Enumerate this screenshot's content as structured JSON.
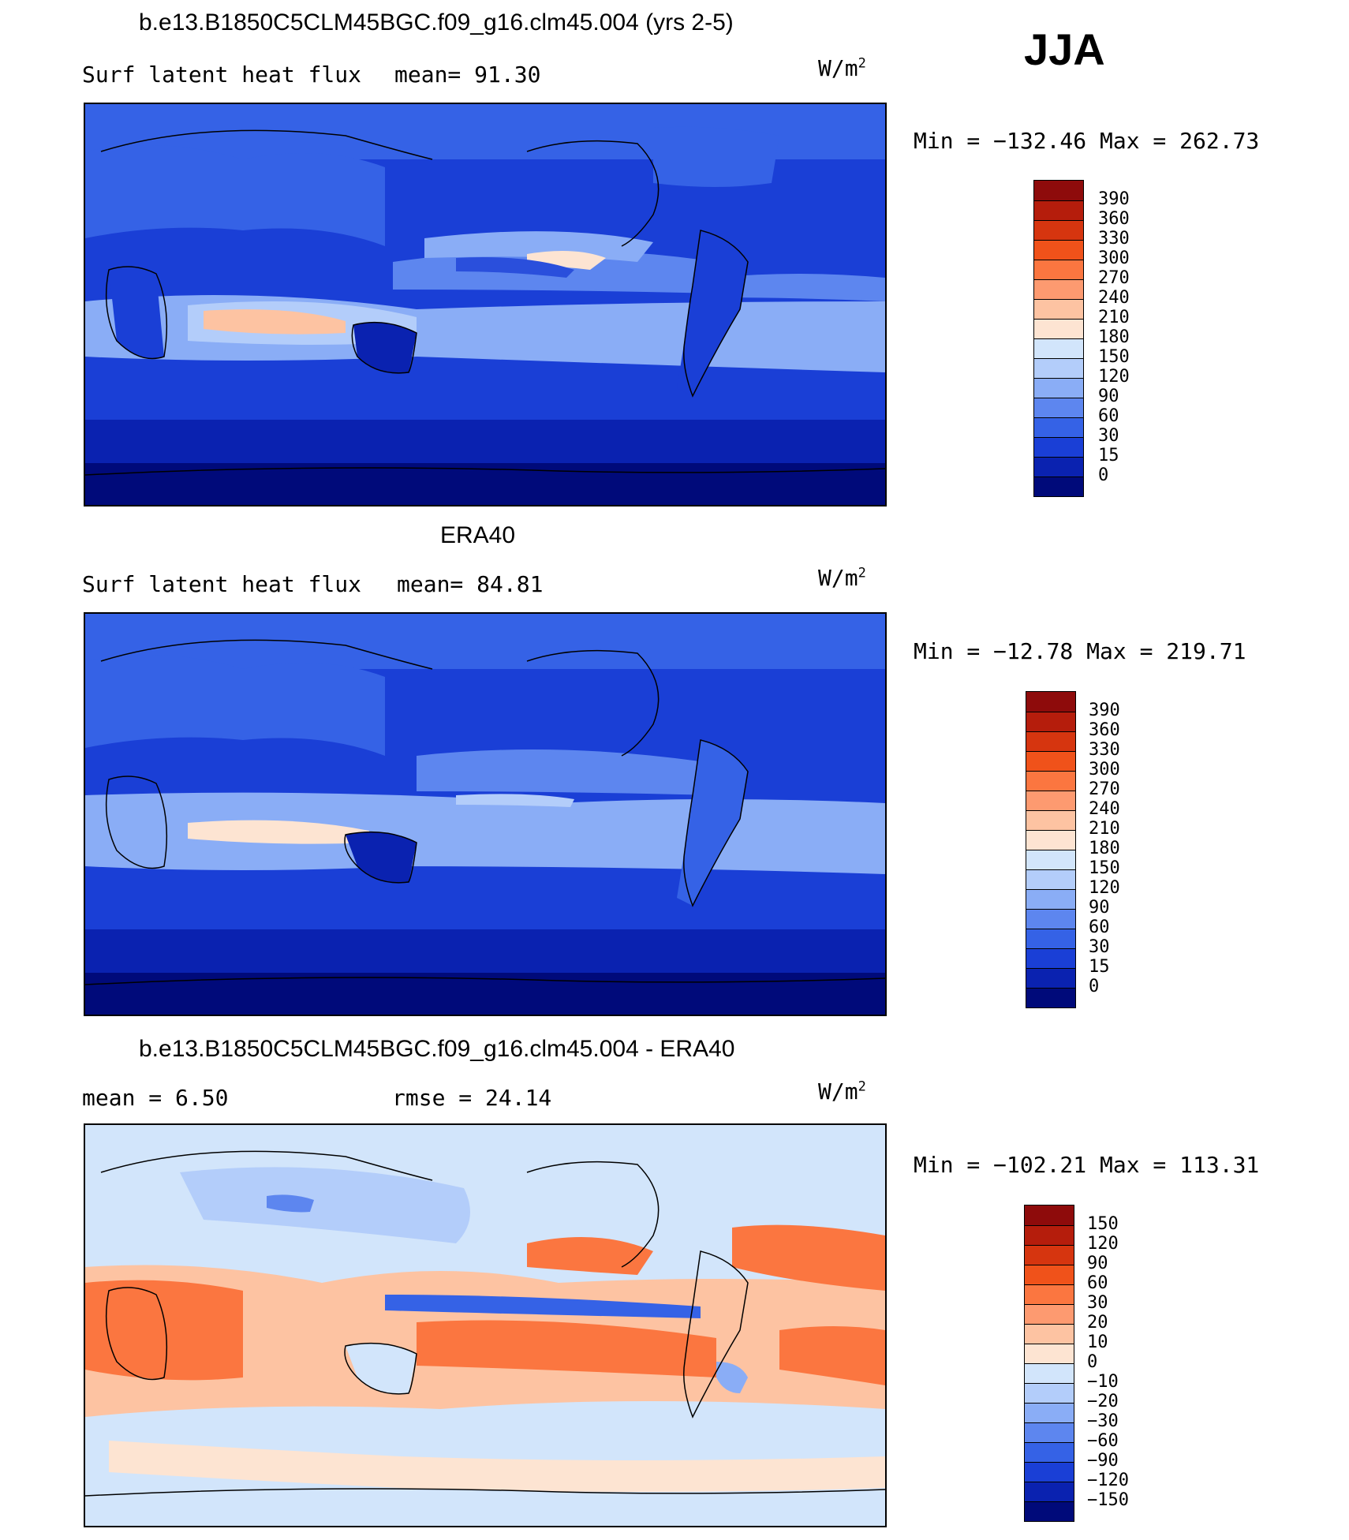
{
  "season": "JJA",
  "unit_base": "W/m",
  "unit_exp": "2",
  "panels": [
    {
      "title": "b.e13.B1850C5CLM45BGC.f09_g16.clm45.004 (yrs 2-5)",
      "left_label": "Surf latent heat flux",
      "mid_label": "mean=  91.30",
      "minmax": "Min = −132.46 Max = 262.73",
      "map_name": "model-latent-heat-map",
      "colorbar": {
        "labels": [
          "390",
          "360",
          "330",
          "300",
          "270",
          "240",
          "210",
          "180",
          "150",
          "120",
          "90",
          "60",
          "30",
          "15",
          "0"
        ],
        "colors": [
          "#8e0b0b",
          "#b51d0c",
          "#d6350f",
          "#f0521a",
          "#fb7640",
          "#fd9a70",
          "#fdc3a2",
          "#fde4d2",
          "#d2e5fb",
          "#b3cdfa",
          "#8aadf6",
          "#5d86ef",
          "#3562e6",
          "#1a3fd6",
          "#0a22b0",
          "#000a7a"
        ]
      }
    },
    {
      "title": "ERA40",
      "left_label": "Surf latent heat flux",
      "mid_label": "mean=  84.81",
      "minmax": "Min = −12.78 Max = 219.71",
      "map_name": "era40-latent-heat-map",
      "colorbar": {
        "labels": [
          "390",
          "360",
          "330",
          "300",
          "270",
          "240",
          "210",
          "180",
          "150",
          "120",
          "90",
          "60",
          "30",
          "15",
          "0"
        ],
        "colors": [
          "#8e0b0b",
          "#b51d0c",
          "#d6350f",
          "#f0521a",
          "#fb7640",
          "#fd9a70",
          "#fdc3a2",
          "#fde4d2",
          "#d2e5fb",
          "#b3cdfa",
          "#8aadf6",
          "#5d86ef",
          "#3562e6",
          "#1a3fd6",
          "#0a22b0",
          "#000a7a"
        ]
      }
    },
    {
      "title": "b.e13.B1850C5CLM45BGC.f09_g16.clm45.004 - ERA40",
      "left_label": "mean =    6.50",
      "mid_label": "rmse =   24.14",
      "minmax": "Min = −102.21 Max = 113.31",
      "map_name": "difference-map",
      "colorbar": {
        "labels": [
          "150",
          "120",
          "90",
          "60",
          "30",
          "20",
          "10",
          "0",
          "−10",
          "−20",
          "−30",
          "−60",
          "−90",
          "−120",
          "−150"
        ],
        "colors": [
          "#8e0b0b",
          "#b51d0c",
          "#d6350f",
          "#f0521a",
          "#fb7640",
          "#fd9a70",
          "#fdc3a2",
          "#fde4d2",
          "#d2e5fb",
          "#b3cdfa",
          "#8aadf6",
          "#5d86ef",
          "#3562e6",
          "#1a3fd6",
          "#0a22b0",
          "#000a7a"
        ]
      }
    }
  ]
}
